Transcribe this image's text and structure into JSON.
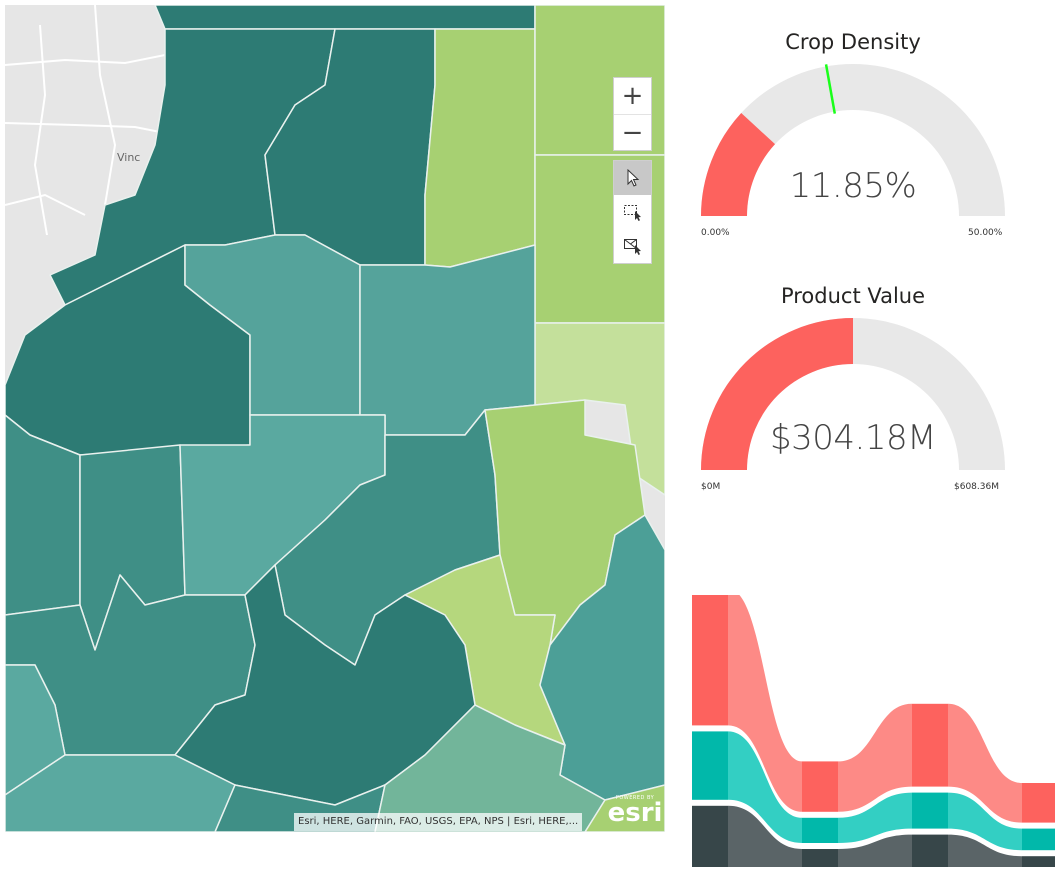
{
  "map": {
    "attribution": "Esri, HERE, Garmin, FAO, USGS, EPA, NPS | Esri, HERE,...",
    "basemap_label": "Vinc",
    "logo_powered": "POWERED BY",
    "logo_name": "esri",
    "controls": {
      "zoom_in": "+",
      "zoom_out": "−"
    },
    "tools": [
      "pointer-select",
      "rectangle-select",
      "lasso-select"
    ],
    "colors": {
      "dark_teal": "#2d7b74",
      "teal": "#3f8f86",
      "light_teal": "#55a39b",
      "green": "#a7d072",
      "light_green": "#c4e09b",
      "basemap": "#e6e6e6"
    }
  },
  "gauge1": {
    "title": "Crop Density",
    "value_label": "11.85%",
    "min_label": "0.00%",
    "max_label": "50.00%",
    "value": 11.85,
    "min": 0,
    "max": 50,
    "target": 22.2,
    "fill_color": "#fd625e",
    "track_color": "#e8e8e8",
    "target_color": "#1aff1a"
  },
  "gauge2": {
    "title": "Product Value",
    "value_label": "$304.18M",
    "min_label": "$0M",
    "max_label": "$608.36M",
    "value": 304.18,
    "min": 0,
    "max": 608.36,
    "fill_color": "#fd625e",
    "track_color": "#e8e8e8"
  },
  "chart_data": [
    {
      "type": "gauge",
      "title": "Crop Density",
      "value": 11.85,
      "min": 0,
      "max": 50,
      "target": 22.2
    },
    {
      "type": "gauge",
      "title": "Product Value",
      "value": 304.18,
      "min": 0,
      "max": 608.36
    },
    {
      "type": "area",
      "subtype": "ribbon",
      "categories": [
        "",
        "",
        "",
        "",
        ""
      ],
      "series": [
        {
          "values": [
            3.8,
            1.4,
            2.3,
            1.1,
            0.6
          ],
          "color": "#fd625e"
        },
        {
          "values": [
            1.9,
            0.7,
            1.0,
            0.6,
            0.7
          ],
          "color": "#01b8aa"
        },
        {
          "values": [
            1.7,
            0.5,
            0.9,
            0.3,
            0.4
          ],
          "color": "#374649"
        }
      ]
    }
  ]
}
